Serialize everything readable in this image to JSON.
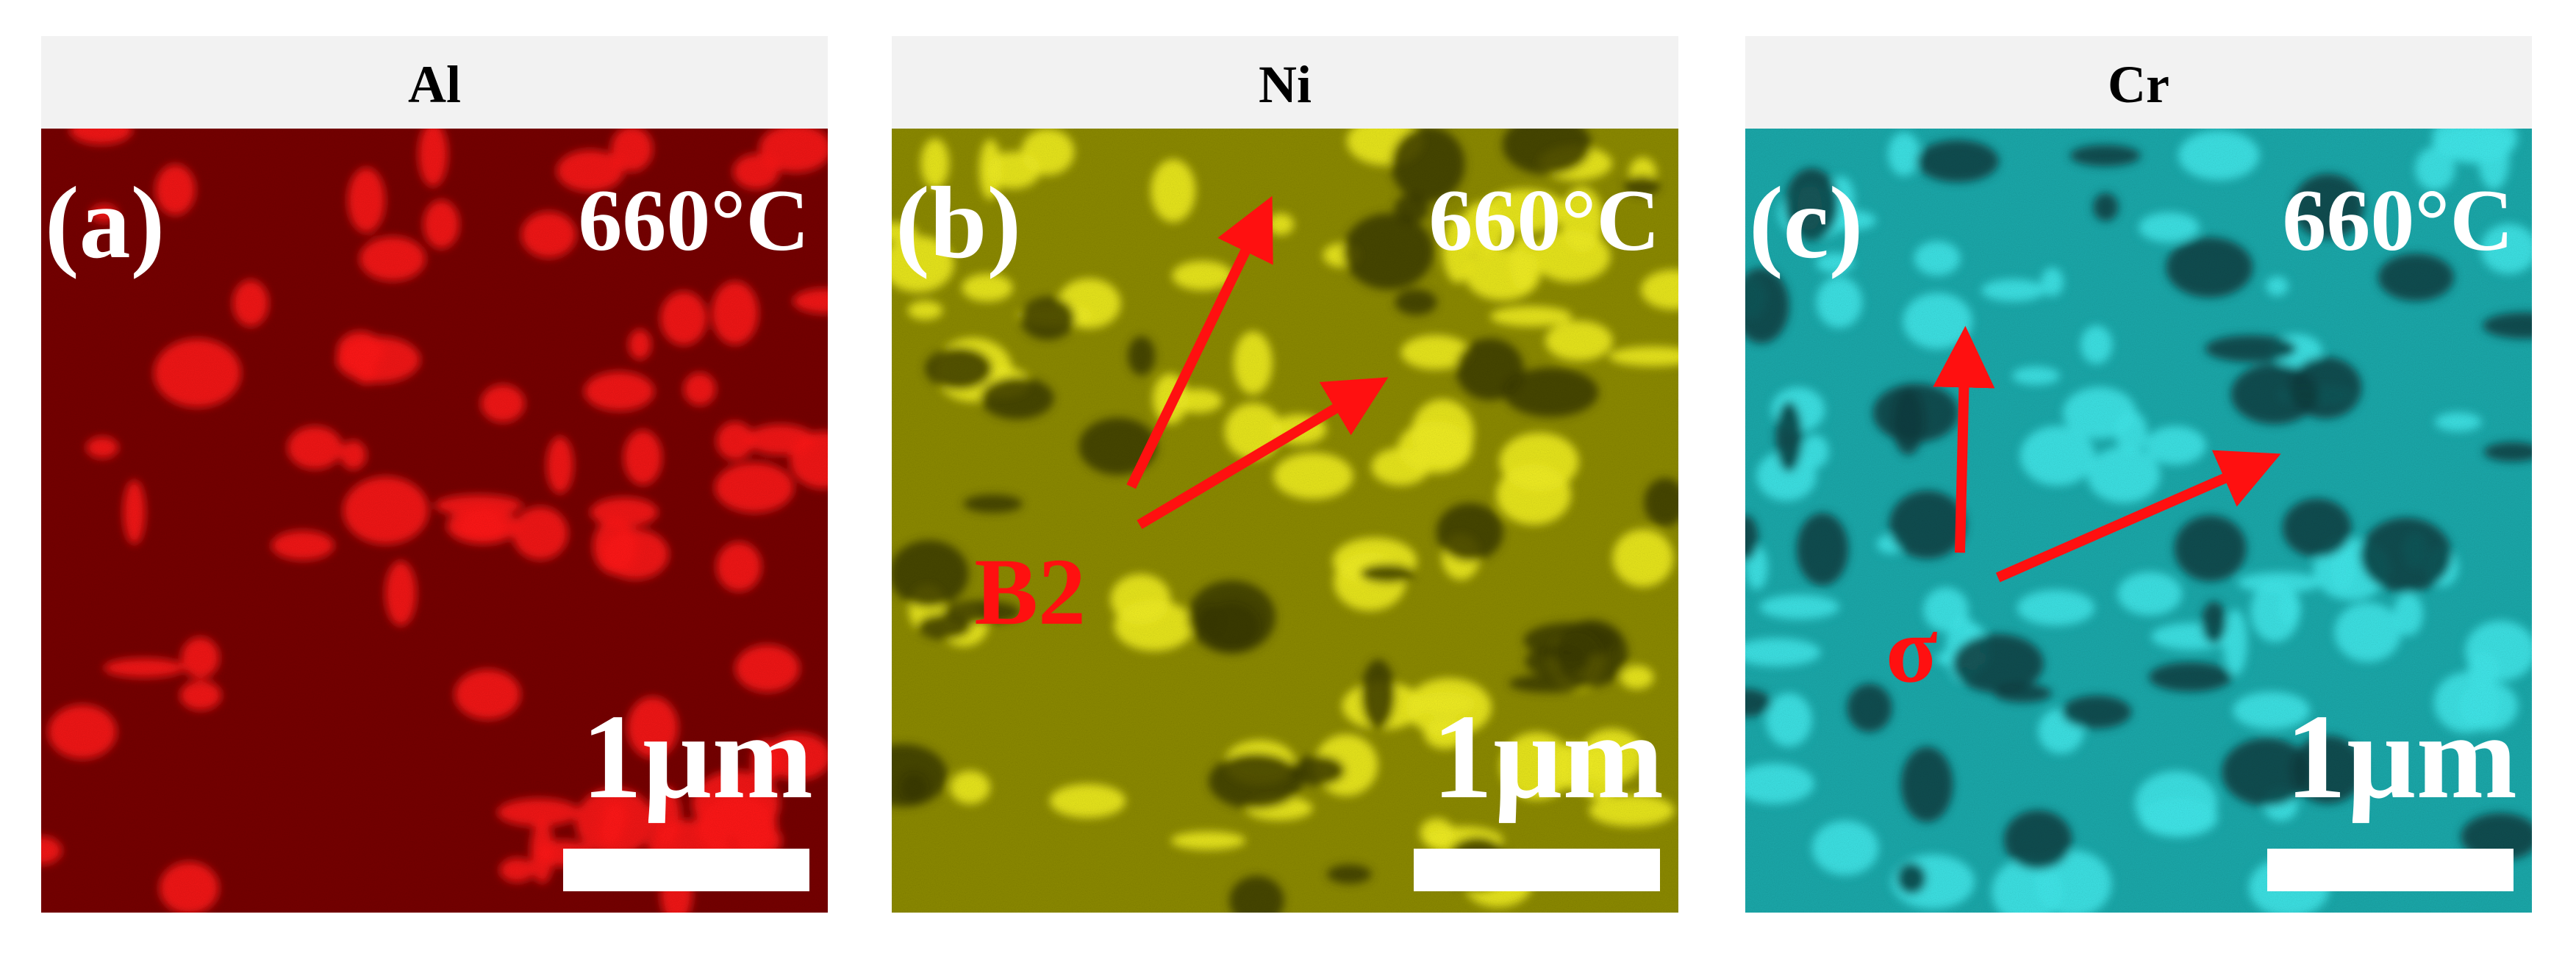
{
  "panels": [
    {
      "element": "Al",
      "label": "(a)",
      "temperature": "660°C",
      "scale_bar": "1µm"
    },
    {
      "element": "Ni",
      "label": "(b)",
      "temperature": "660°C",
      "scale_bar": "1µm",
      "annotation": "B2"
    },
    {
      "element": "Cr",
      "label": "(c)",
      "temperature": "660°C",
      "scale_bar": "1µm",
      "annotation": "σ"
    }
  ]
}
